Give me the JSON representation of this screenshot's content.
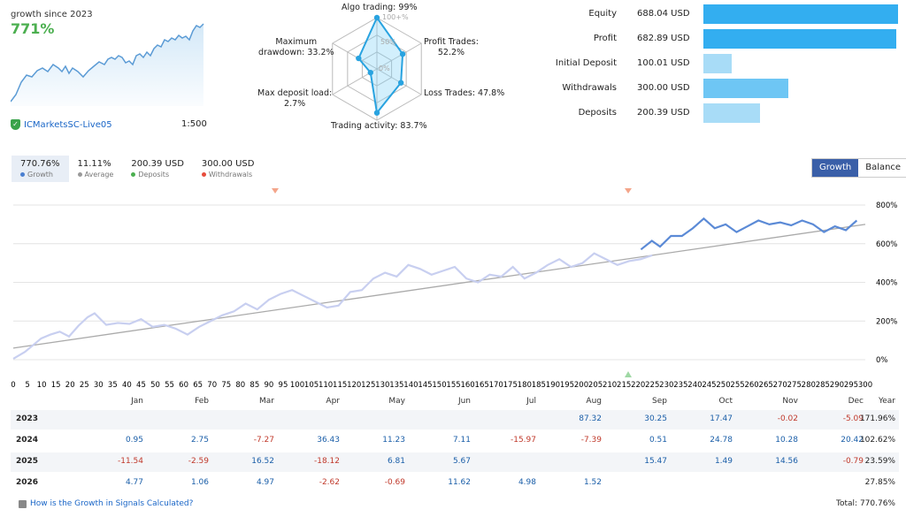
{
  "header": {
    "growth_title": "growth since 2023",
    "growth_value": "771%",
    "broker": "ICMarketsSC-Live05",
    "leverage": "1:500"
  },
  "radar": {
    "algo_trading": "Algo trading: 99%",
    "profit_trades": [
      "Profit Trades:",
      "52.2%"
    ],
    "loss_trades": "Loss Trades: 47.8%",
    "trading_activity": "Trading activity: 83.7%",
    "max_deposit_load": [
      "Max deposit load:",
      "2.7%"
    ],
    "max_drawdown": [
      "Maximum",
      "drawdown: 33.2%"
    ],
    "rings": [
      "100+%",
      "50%",
      "0%"
    ],
    "values": {
      "algo": 1.0,
      "profit": 0.522,
      "loss": 0.478,
      "activity": 0.837,
      "load": 0.027,
      "drawdown": 0.332
    },
    "accent": "#29a3e0"
  },
  "summary": [
    {
      "label": "Equity",
      "value": "688.04 USD",
      "amount": 688.04,
      "color": "#33aef0"
    },
    {
      "label": "Profit",
      "value": "682.89 USD",
      "amount": 682.89,
      "color": "#33aef0"
    },
    {
      "label": "Initial Deposit",
      "value": "100.01 USD",
      "amount": 100.01,
      "color": "#a8dcf7"
    },
    {
      "label": "Withdrawals",
      "value": "300.00 USD",
      "amount": 300.0,
      "color": "#6ec6f4"
    },
    {
      "label": "Deposits",
      "value": "200.39 USD",
      "amount": 200.39,
      "color": "#a8dcf7"
    }
  ],
  "stats": [
    {
      "value": "770.76%",
      "label": "Growth",
      "color": "#4a7fd0"
    },
    {
      "value": "11.11%",
      "label": "Average",
      "color": "#999999"
    },
    {
      "value": "200.39 USD",
      "label": "Deposits",
      "color": "#4caf50"
    },
    {
      "value": "300.00 USD",
      "label": "Withdrawals",
      "color": "#e74c3c"
    }
  ],
  "toggle": {
    "growth": "Growth",
    "balance": "Balance"
  },
  "chart_data": {
    "type": "line",
    "xlabel": "",
    "ylabel": "",
    "xlim": [
      0,
      300
    ],
    "ylim": [
      -50,
      850
    ],
    "x_ticks": [
      0,
      5,
      10,
      15,
      20,
      25,
      30,
      35,
      40,
      45,
      50,
      55,
      60,
      65,
      70,
      75,
      80,
      85,
      90,
      95,
      100,
      105,
      110,
      115,
      120,
      125,
      130,
      135,
      140,
      145,
      150,
      155,
      160,
      165,
      170,
      175,
      180,
      185,
      190,
      195,
      200,
      205,
      210,
      215,
      220,
      225,
      230,
      235,
      240,
      245,
      250,
      255,
      260,
      265,
      270,
      275,
      280,
      285,
      290,
      295,
      300
    ],
    "y_ticks": [
      {
        "value": 800,
        "label": "800%"
      },
      {
        "value": 600,
        "label": "600%"
      },
      {
        "value": 400,
        "label": "400%"
      },
      {
        "value": 200,
        "label": "200%"
      },
      {
        "value": 0,
        "label": "0%"
      }
    ],
    "series": [
      {
        "values": [
          [
            0,
            5
          ],
          [
            5,
            40
          ],
          [
            8,
            70
          ],
          [
            12,
            110
          ],
          [
            16,
            130
          ],
          [
            20,
            145
          ],
          [
            24,
            120
          ],
          [
            28,
            175
          ],
          [
            32,
            220
          ],
          [
            35,
            240
          ],
          [
            40,
            180
          ],
          [
            45,
            190
          ],
          [
            50,
            185
          ],
          [
            55,
            210
          ],
          [
            60,
            170
          ],
          [
            65,
            180
          ],
          [
            70,
            160
          ],
          [
            75,
            130
          ],
          [
            80,
            170
          ],
          [
            85,
            200
          ],
          [
            90,
            230
          ],
          [
            95,
            250
          ],
          [
            100,
            290
          ],
          [
            105,
            260
          ],
          [
            110,
            310
          ],
          [
            115,
            340
          ],
          [
            120,
            360
          ],
          [
            125,
            330
          ],
          [
            130,
            300
          ],
          [
            135,
            270
          ],
          [
            140,
            280
          ],
          [
            145,
            350
          ],
          [
            150,
            360
          ],
          [
            155,
            420
          ],
          [
            160,
            450
          ],
          [
            165,
            430
          ],
          [
            170,
            490
          ],
          [
            175,
            470
          ],
          [
            180,
            440
          ],
          [
            185,
            460
          ],
          [
            190,
            480
          ],
          [
            195,
            420
          ],
          [
            200,
            400
          ],
          [
            205,
            440
          ],
          [
            210,
            430
          ],
          [
            215,
            480
          ],
          [
            220,
            420
          ],
          [
            225,
            450
          ],
          [
            230,
            490
          ],
          [
            235,
            520
          ],
          [
            240,
            480
          ],
          [
            245,
            500
          ],
          [
            250,
            550
          ],
          [
            255,
            520
          ],
          [
            260,
            490
          ],
          [
            265,
            510
          ],
          [
            270,
            520
          ],
          [
            275,
            540
          ]
        ],
        "x_scale": "seg1",
        "color": "#c8cff0"
      },
      {
        "values": [
          [
            221,
            530
          ],
          [
            225,
            575
          ],
          [
            228,
            545
          ],
          [
            232,
            600
          ],
          [
            236,
            600
          ],
          [
            240,
            640
          ],
          [
            244,
            690
          ],
          [
            248,
            640
          ],
          [
            252,
            660
          ],
          [
            256,
            620
          ],
          [
            260,
            650
          ],
          [
            264,
            680
          ],
          [
            268,
            660
          ],
          [
            272,
            670
          ],
          [
            276,
            655
          ],
          [
            280,
            680
          ],
          [
            284,
            640
          ],
          [
            288,
            600
          ],
          [
            292,
            630
          ],
          [
            296,
            610
          ],
          [
            300,
            660
          ]
        ],
        "x_scale": "seg2",
        "color": "#5b8ad6"
      }
    ],
    "trend": {
      "from": [
        0,
        60
      ],
      "to": [
        300,
        700
      ],
      "color": "#aaaaaa"
    }
  },
  "monthly": {
    "months": [
      "Jan",
      "Feb",
      "Mar",
      "Apr",
      "May",
      "Jun",
      "Jul",
      "Aug",
      "Sep",
      "Oct",
      "Nov",
      "Dec",
      "Year"
    ],
    "rows": [
      {
        "year": "2023",
        "cells": [
          "",
          "",
          "",
          "",
          "",
          "",
          "",
          "87.32",
          "30.25",
          "17.47",
          "-0.02",
          "-5.09",
          "171.96%"
        ]
      },
      {
        "year": "2024",
        "cells": [
          "0.95",
          "2.75",
          "-7.27",
          "36.43",
          "11.23",
          "7.11",
          "-15.97",
          "-7.39",
          "0.51",
          "24.78",
          "10.28",
          "20.42",
          "102.62%"
        ]
      },
      {
        "year": "2025",
        "cells": [
          "-11.54",
          "-2.59",
          "16.52",
          "-18.12",
          "6.81",
          "5.67",
          "",
          "",
          "15.47",
          "1.49",
          "14.56",
          "-0.79",
          "23.59%"
        ]
      },
      {
        "year": "2026",
        "cells": [
          "4.77",
          "1.06",
          "4.97",
          "-2.62",
          "-0.69",
          "11.62",
          "4.98",
          "1.52",
          "",
          "",
          "",
          "",
          "27.85%"
        ]
      }
    ]
  },
  "footer": {
    "link": "How is the Growth in Signals Calculated?",
    "total": "Total: 770.76%"
  }
}
